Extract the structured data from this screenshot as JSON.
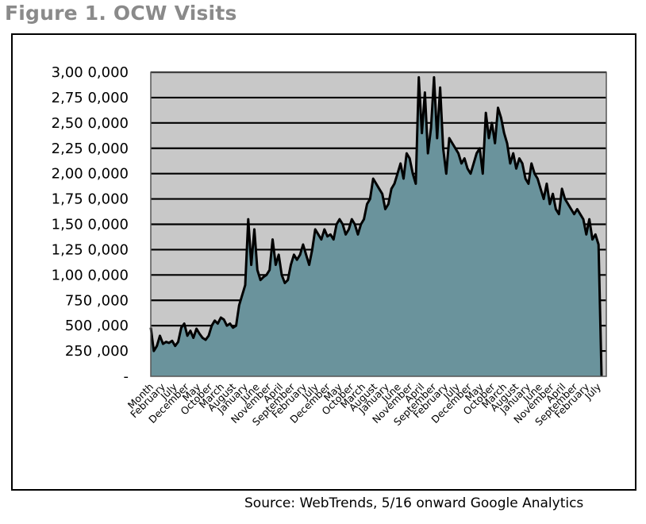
{
  "figure_title": "Figure 1. OCW Visits",
  "source_note": "Source: WebTrends, 5/16 onward Google Analytics",
  "colors": {
    "plot_bg": "#c8c8c8",
    "area_fill": "#6a939c",
    "line": "#000000",
    "grid": "#000000"
  },
  "chart_data": {
    "type": "area",
    "title": "",
    "xlabel": "",
    "ylabel": "",
    "ylim": [
      0,
      3000000
    ],
    "grid": true,
    "legend": "none",
    "y_ticks": [
      {
        "value": 0,
        "label": "-"
      },
      {
        "value": 250000,
        "label": "250 ,000"
      },
      {
        "value": 500000,
        "label": "500 ,000"
      },
      {
        "value": 750000,
        "label": "750 ,000"
      },
      {
        "value": 1000000,
        "label": "1,00 0,000"
      },
      {
        "value": 1250000,
        "label": "1,25 0,000"
      },
      {
        "value": 1500000,
        "label": "1,50 0,000"
      },
      {
        "value": 1750000,
        "label": "1,75 0,000"
      },
      {
        "value": 2000000,
        "label": "2,00 0,000"
      },
      {
        "value": 2250000,
        "label": "2,25 0,000"
      },
      {
        "value": 2500000,
        "label": "2,50 0,000"
      },
      {
        "value": 2750000,
        "label": "2,75 0,000"
      },
      {
        "value": 3000000,
        "label": "3,00 0,000"
      }
    ],
    "x_tick_labels": [
      "Month",
      "February",
      "July",
      "December",
      "May",
      "October",
      "March",
      "August",
      "January",
      "June",
      "November",
      "April",
      "September",
      "February",
      "July",
      "December",
      "May",
      "October",
      "March",
      "August",
      "January",
      "June",
      "November",
      "April",
      "September",
      "February",
      "July",
      "December",
      "May",
      "October",
      "March",
      "August",
      "January",
      "June",
      "November",
      "April",
      "September",
      "February",
      "July"
    ],
    "values": [
      480000,
      250000,
      300000,
      400000,
      320000,
      340000,
      330000,
      350000,
      300000,
      340000,
      480000,
      520000,
      400000,
      450000,
      380000,
      470000,
      420000,
      380000,
      360000,
      400000,
      500000,
      550000,
      520000,
      580000,
      560000,
      500000,
      520000,
      480000,
      500000,
      700000,
      800000,
      900000,
      1550000,
      1100000,
      1450000,
      1050000,
      950000,
      980000,
      1000000,
      1050000,
      1350000,
      1100000,
      1200000,
      1000000,
      920000,
      950000,
      1100000,
      1200000,
      1150000,
      1200000,
      1300000,
      1200000,
      1100000,
      1250000,
      1450000,
      1400000,
      1350000,
      1450000,
      1380000,
      1400000,
      1350000,
      1500000,
      1550000,
      1500000,
      1400000,
      1450000,
      1550000,
      1500000,
      1400000,
      1500000,
      1550000,
      1700000,
      1750000,
      1950000,
      1900000,
      1850000,
      1800000,
      1650000,
      1700000,
      1850000,
      1900000,
      2000000,
      2100000,
      1950000,
      2200000,
      2150000,
      2000000,
      1900000,
      2950000,
      2400000,
      2800000,
      2200000,
      2450000,
      2950000,
      2350000,
      2850000,
      2250000,
      2000000,
      2350000,
      2300000,
      2250000,
      2200000,
      2100000,
      2150000,
      2050000,
      2000000,
      2100000,
      2200000,
      2250000,
      2000000,
      2600000,
      2350000,
      2500000,
      2300000,
      2650000,
      2550000,
      2400000,
      2300000,
      2100000,
      2200000,
      2050000,
      2150000,
      2100000,
      1950000,
      1900000,
      2100000,
      2000000,
      1950000,
      1850000,
      1750000,
      1900000,
      1700000,
      1800000,
      1650000,
      1600000,
      1850000,
      1750000,
      1700000,
      1650000,
      1600000,
      1650000,
      1600000,
      1550000,
      1400000,
      1550000,
      1350000,
      1400000,
      1300000,
      0
    ]
  }
}
